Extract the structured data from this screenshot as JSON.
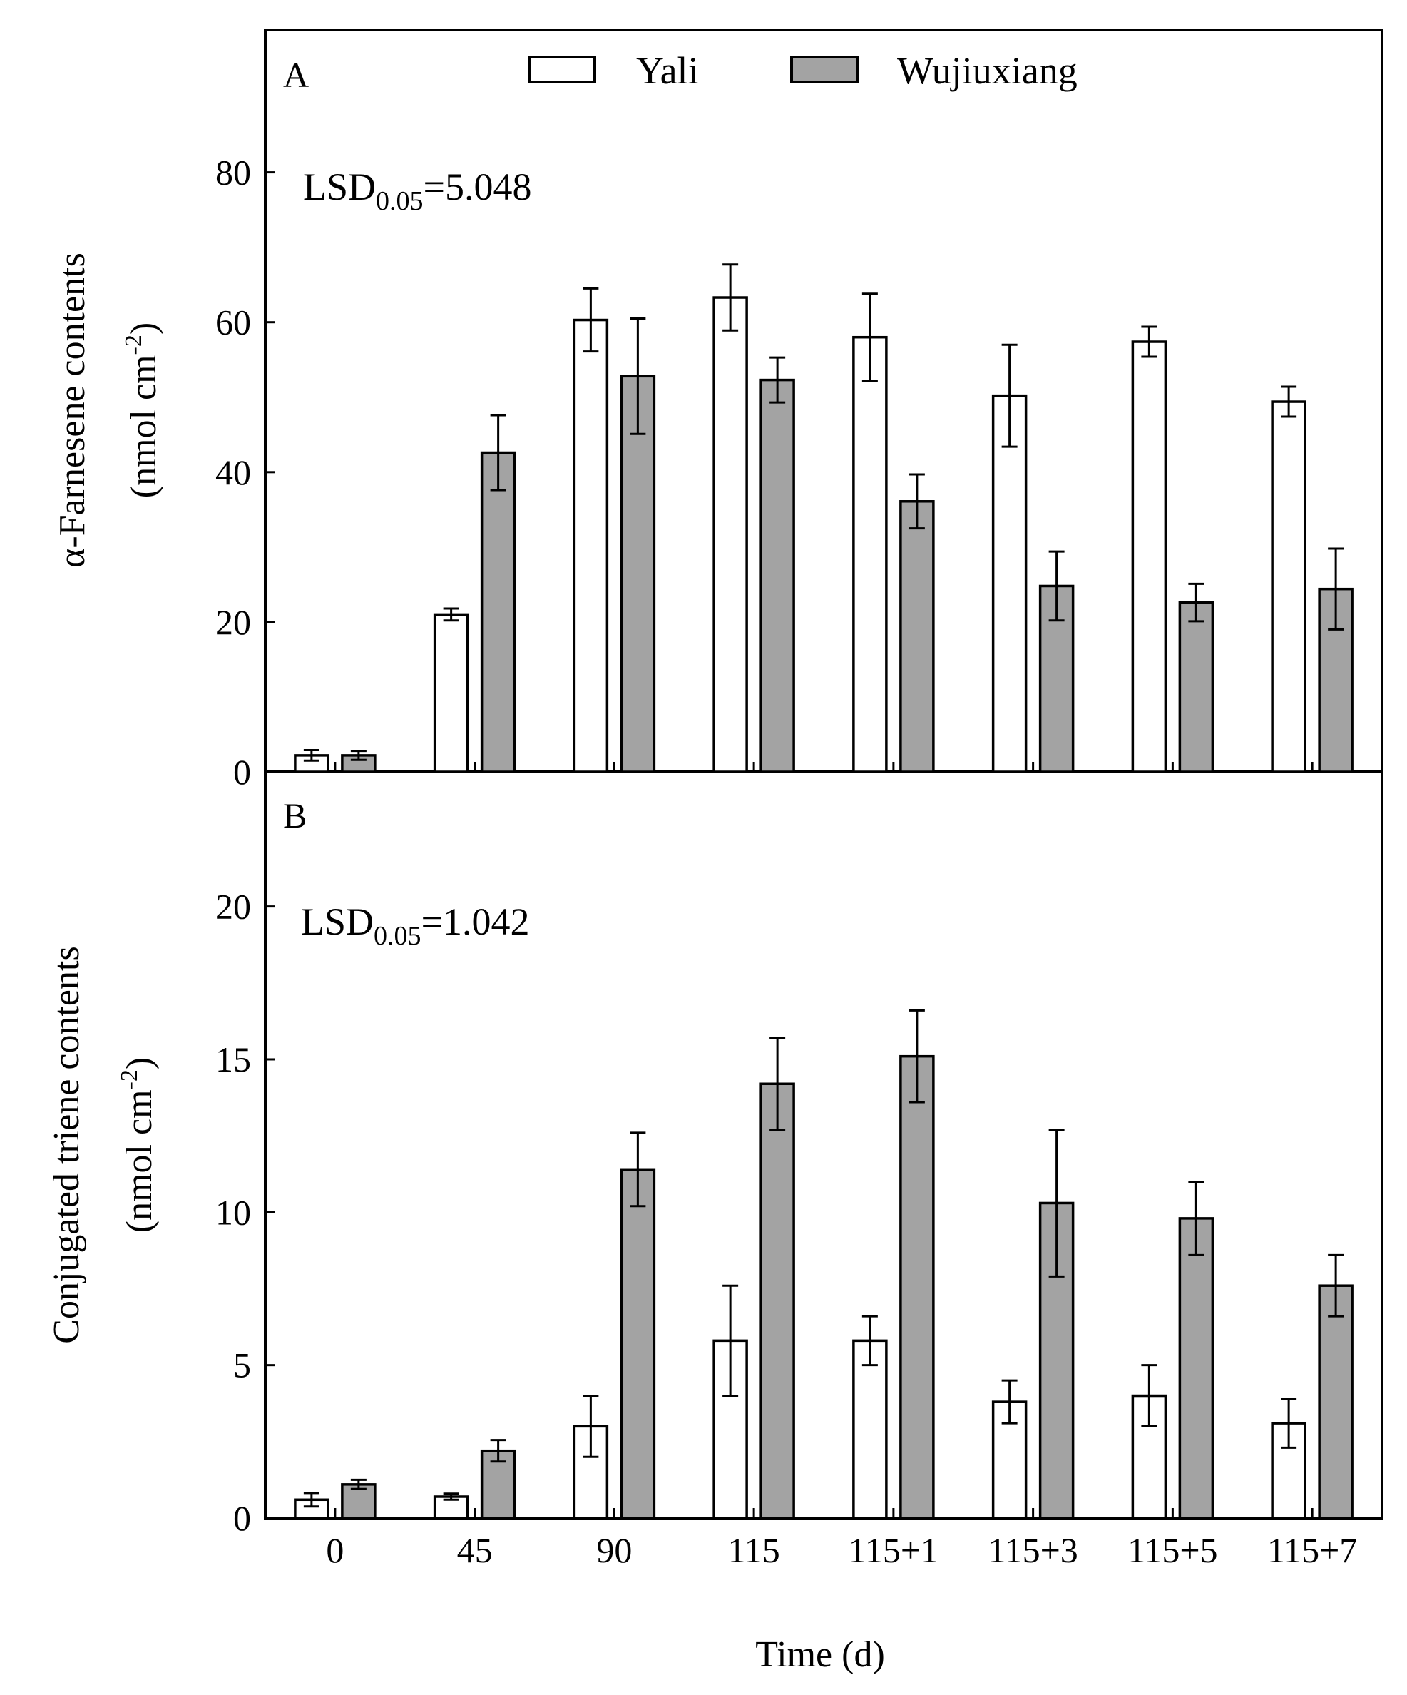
{
  "chart_data": [
    {
      "panel": "A",
      "type": "bar",
      "ylabel": [
        "α-Farnesene contents",
        "(nmol cm",
        "-2",
        ")"
      ],
      "ylim": [
        0,
        99
      ],
      "yticks": [
        "0",
        "20",
        "40",
        "60",
        "80"
      ],
      "lsd": {
        "main": "LSD",
        "sub": "0.05",
        "value": "=5.048"
      },
      "categories": [
        "0",
        "45",
        "90",
        "115",
        "115+1",
        "115+3",
        "115+5",
        "115+7"
      ],
      "series": [
        {
          "name": "Yali",
          "color": "#ffffff",
          "values": [
            2.2,
            21,
            60.3,
            63.3,
            58,
            50.2,
            57.4,
            49.4
          ],
          "errors": [
            0.7,
            0.8,
            4.2,
            4.4,
            5.8,
            6.8,
            2.0,
            2.0
          ]
        },
        {
          "name": "Wujiuxiang",
          "color": "#a3a3a3",
          "values": [
            2.2,
            42.6,
            52.8,
            52.3,
            36.1,
            24.8,
            22.6,
            24.4
          ],
          "errors": [
            0.6,
            5.0,
            7.7,
            3.0,
            3.6,
            4.6,
            2.5,
            5.4
          ]
        }
      ]
    },
    {
      "panel": "B",
      "type": "bar",
      "ylabel": [
        "Conjugated triene contents",
        "(nmol cm",
        "-2",
        ")"
      ],
      "ylim": [
        0,
        24.4
      ],
      "yticks": [
        "0",
        "5",
        "10",
        "15",
        "20"
      ],
      "lsd": {
        "main": "LSD",
        "sub": "0.05",
        "value": "=1.042"
      },
      "categories": [
        "0",
        "45",
        "90",
        "115",
        "115+1",
        "115+3",
        "115+5",
        "115+7"
      ],
      "series": [
        {
          "name": "Yali",
          "color": "#ffffff",
          "values": [
            0.6,
            0.7,
            3.0,
            5.8,
            5.8,
            3.8,
            4.0,
            3.1
          ],
          "errors": [
            0.22,
            0.1,
            1.0,
            1.8,
            0.8,
            0.7,
            1.0,
            0.8
          ]
        },
        {
          "name": "Wujiuxiang",
          "color": "#a3a3a3",
          "values": [
            1.1,
            2.2,
            11.4,
            14.2,
            15.1,
            10.3,
            9.8,
            7.6
          ],
          "errors": [
            0.15,
            0.35,
            1.2,
            1.5,
            1.5,
            2.4,
            1.2,
            1.0
          ]
        }
      ]
    }
  ],
  "legend": [
    {
      "label": "Yali",
      "color": "#ffffff"
    },
    {
      "label": "Wujiuxiang",
      "color": "#a3a3a3"
    }
  ],
  "xlabel": "Time (d)"
}
